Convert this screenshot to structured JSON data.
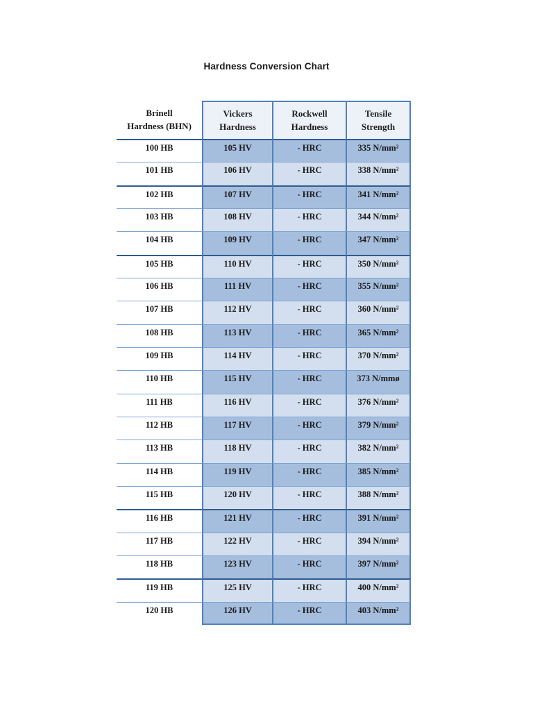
{
  "page": {
    "title": "Hardness Conversion Chart"
  },
  "colors": {
    "border": "#4f81bd",
    "line": "#7da3d2",
    "thick": "#2e5c90",
    "dark": "#a6bede",
    "light": "#d3dfee",
    "header": "#edf2f9",
    "text": "#1b1b1b"
  },
  "table": {
    "columns": [
      {
        "line1": "Brinell",
        "line2": "Hardness (BHN)"
      },
      {
        "line1": "Vickers",
        "line2": "Hardness"
      },
      {
        "line1": "Rockwell",
        "line2": "Hardness"
      },
      {
        "line1": "Tensile",
        "line2": "Strength"
      }
    ],
    "rows": [
      {
        "bhn": "100 HB",
        "hv": "105 HV",
        "hrc": "- HRC",
        "tensile": "335 N/mm²",
        "shade": "dark",
        "thick_top": true
      },
      {
        "bhn": "101 HB",
        "hv": "106 HV",
        "hrc": "- HRC",
        "tensile": "338 N/mm²",
        "shade": "light",
        "thick_top": false
      },
      {
        "bhn": "102 HB",
        "hv": "107 HV",
        "hrc": "- HRC",
        "tensile": "341 N/mm²",
        "shade": "dark",
        "thick_top": true
      },
      {
        "bhn": "103 HB",
        "hv": "108 HV",
        "hrc": "- HRC",
        "tensile": "344 N/mm²",
        "shade": "light",
        "thick_top": false
      },
      {
        "bhn": "104 HB",
        "hv": "109 HV",
        "hrc": "- HRC",
        "tensile": "347 N/mm²",
        "shade": "dark",
        "thick_top": false
      },
      {
        "bhn": "105 HB",
        "hv": "110 HV",
        "hrc": "- HRC",
        "tensile": "350 N/mm²",
        "shade": "light",
        "thick_top": true
      },
      {
        "bhn": "106 HB",
        "hv": "111 HV",
        "hrc": "- HRC",
        "tensile": "355 N/mm²",
        "shade": "dark",
        "thick_top": false
      },
      {
        "bhn": "107 HB",
        "hv": "112 HV",
        "hrc": "- HRC",
        "tensile": "360 N/mm²",
        "shade": "light",
        "thick_top": false
      },
      {
        "bhn": "108 HB",
        "hv": "113 HV",
        "hrc": "- HRC",
        "tensile": "365 N/mm²",
        "shade": "dark",
        "thick_top": false
      },
      {
        "bhn": "109 HB",
        "hv": "114 HV",
        "hrc": "- HRC",
        "tensile": "370 N/mm²",
        "shade": "light",
        "thick_top": false
      },
      {
        "bhn": "110 HB",
        "hv": "115 HV",
        "hrc": "- HRC",
        "tensile": "373 N/mmø",
        "shade": "dark",
        "thick_top": false
      },
      {
        "bhn": "111 HB",
        "hv": "116 HV",
        "hrc": "- HRC",
        "tensile": "376 N/mm²",
        "shade": "light",
        "thick_top": false
      },
      {
        "bhn": "112 HB",
        "hv": "117 HV",
        "hrc": "- HRC",
        "tensile": "379 N/mm²",
        "shade": "dark",
        "thick_top": false
      },
      {
        "bhn": "113 HB",
        "hv": "118 HV",
        "hrc": "- HRC",
        "tensile": "382 N/mm²",
        "shade": "light",
        "thick_top": false
      },
      {
        "bhn": "114 HB",
        "hv": "119 HV",
        "hrc": "- HRC",
        "tensile": "385 N/mm²",
        "shade": "dark",
        "thick_top": false
      },
      {
        "bhn": "115 HB",
        "hv": "120 HV",
        "hrc": "- HRC",
        "tensile": "388 N/mm²",
        "shade": "light",
        "thick_top": false
      },
      {
        "bhn": "116 HB",
        "hv": "121 HV",
        "hrc": "- HRC",
        "tensile": "391 N/mm²",
        "shade": "dark",
        "thick_top": true
      },
      {
        "bhn": "117 HB",
        "hv": "122 HV",
        "hrc": "- HRC",
        "tensile": "394 N/mm²",
        "shade": "light",
        "thick_top": false
      },
      {
        "bhn": "118 HB",
        "hv": "123 HV",
        "hrc": "- HRC",
        "tensile": "397 N/mm²",
        "shade": "dark",
        "thick_top": false
      },
      {
        "bhn": "119 HB",
        "hv": "125 HV",
        "hrc": "- HRC",
        "tensile": "400 N/mm²",
        "shade": "light",
        "thick_top": true
      },
      {
        "bhn": "120 HB",
        "hv": "126 HV",
        "hrc": "- HRC",
        "tensile": "403 N/mm²",
        "shade": "dark",
        "thick_top": false
      }
    ]
  }
}
